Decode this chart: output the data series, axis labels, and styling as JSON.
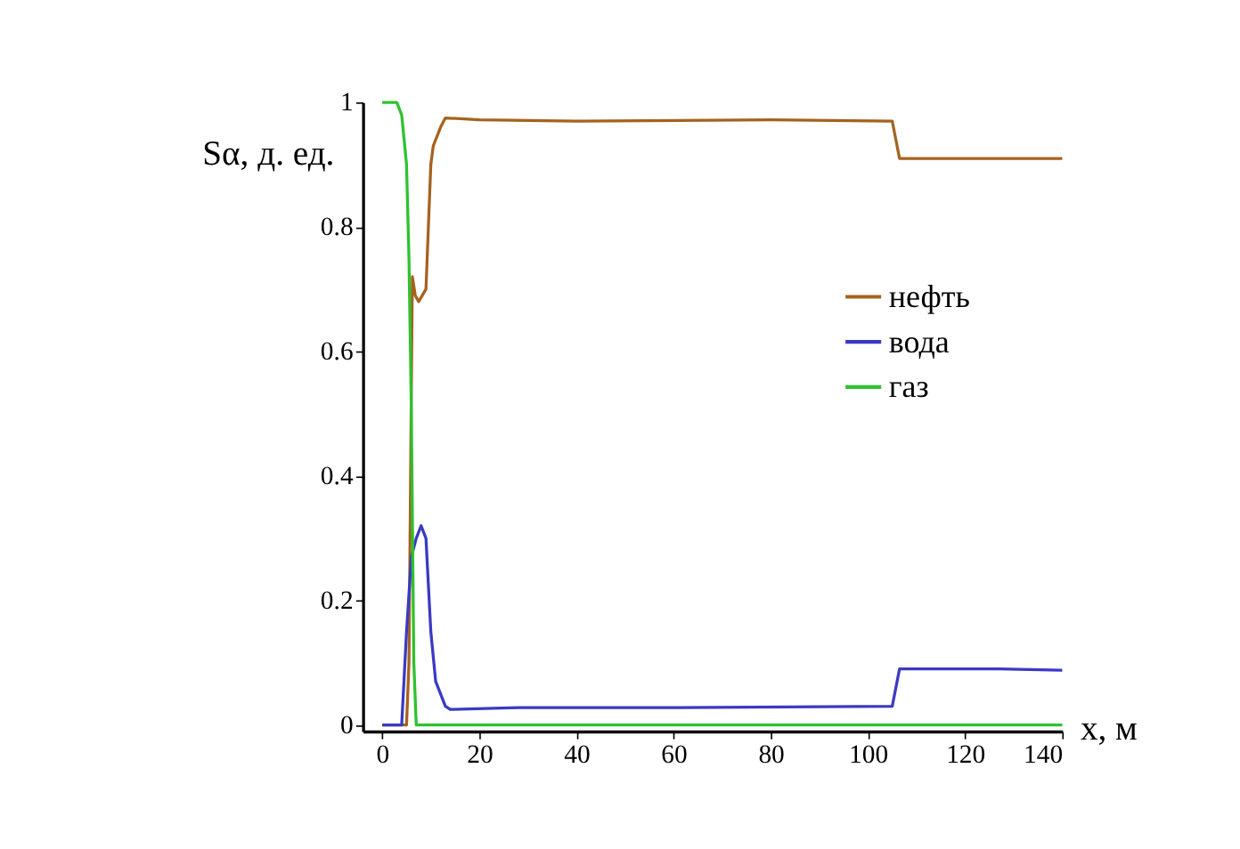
{
  "chart_data": {
    "type": "line",
    "xlabel": "x, м",
    "ylabel": "Sα, д. ед.",
    "xlim": [
      -4,
      140
    ],
    "ylim": [
      -0.01,
      1
    ],
    "xticks": [
      0,
      20,
      40,
      60,
      80,
      100,
      120,
      140
    ],
    "yticks": [
      0,
      0.2,
      0.4,
      0.6,
      0.8,
      1
    ],
    "grid": false,
    "legend": "right",
    "marker": "none",
    "line_style": "solid",
    "series": [
      {
        "name": "нефть",
        "color": "#a5621e",
        "x": [
          0,
          5,
          5.5,
          6.2,
          6.8,
          7.5,
          9,
          10,
          10.5,
          12,
          13,
          20,
          40,
          80,
          105,
          106.5,
          140
        ],
        "values": [
          0,
          0,
          0.1,
          0.72,
          0.69,
          0.68,
          0.7,
          0.9,
          0.93,
          0.96,
          0.975,
          0.972,
          0.97,
          0.972,
          0.97,
          0.91,
          0.91
        ]
      },
      {
        "name": "вода",
        "color": "#3a3ac4",
        "x": [
          0,
          4,
          5,
          6,
          7,
          8,
          9,
          10,
          11,
          12,
          13,
          14,
          28,
          60,
          105,
          106.5,
          127,
          140
        ],
        "values": [
          0,
          0,
          0.15,
          0.27,
          0.3,
          0.32,
          0.3,
          0.15,
          0.07,
          0.05,
          0.03,
          0.025,
          0.028,
          0.028,
          0.03,
          0.09,
          0.09,
          0.088
        ]
      },
      {
        "name": "газ",
        "color": "#2ec22e",
        "x": [
          0,
          3,
          4,
          5,
          5.5,
          6,
          6.5,
          7,
          140
        ],
        "values": [
          1,
          1,
          0.98,
          0.9,
          0.75,
          0.5,
          0.1,
          0,
          0
        ]
      }
    ]
  }
}
